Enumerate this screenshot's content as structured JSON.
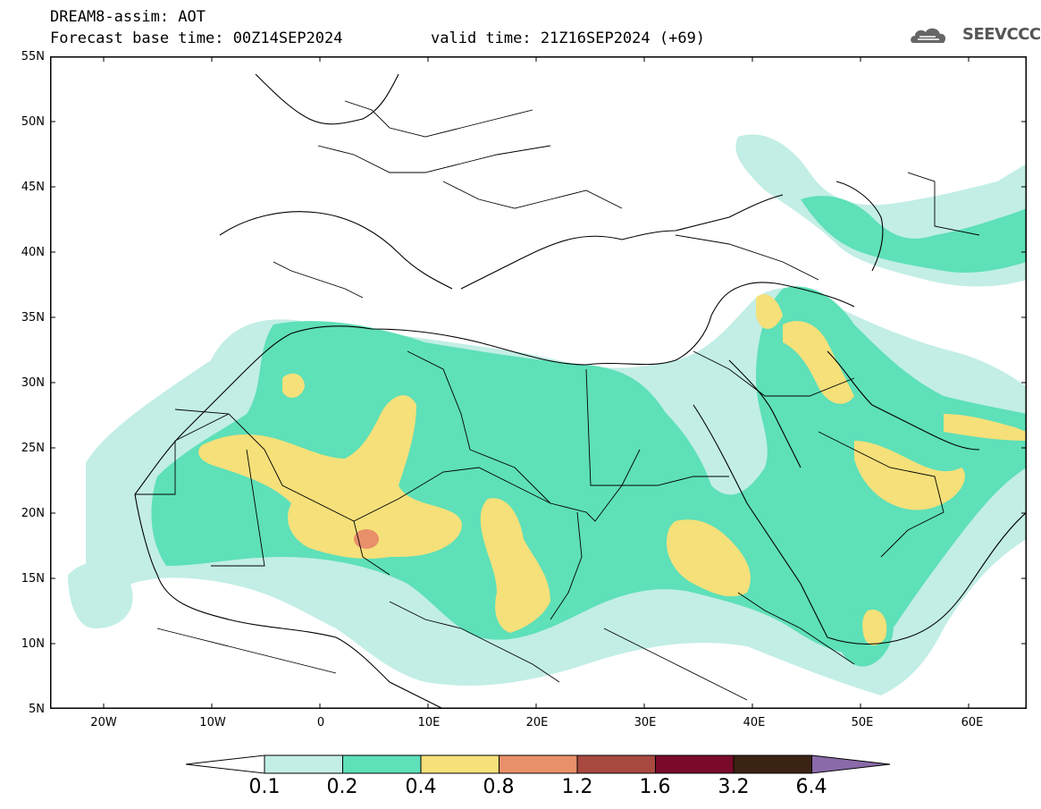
{
  "header": {
    "title": "DREAM8-assim: AOT",
    "base_time": "Forecast base time: 00Z14SEP2024",
    "valid_time": "valid time: 21Z16SEP2024 (+69)",
    "logo_text": "SEEVCCC"
  },
  "axes": {
    "lat_labels": [
      "55N",
      "50N",
      "45N",
      "40N",
      "35N",
      "30N",
      "25N",
      "20N",
      "15N",
      "10N",
      "5N"
    ],
    "lon_labels": [
      "20W",
      "10W",
      "0",
      "10E",
      "20E",
      "30E",
      "40E",
      "50E",
      "60E"
    ]
  },
  "colorbar": {
    "labels": [
      "0.1",
      "0.2",
      "0.4",
      "0.8",
      "1.2",
      "1.6",
      "3.2",
      "6.4"
    ],
    "colors": [
      "#ffffff",
      "#c2eee5",
      "#5ee0b8",
      "#f5e07a",
      "#e8906a",
      "#a8493f",
      "#7a0a2a",
      "#3b2314",
      "#8a6aa8"
    ]
  }
}
